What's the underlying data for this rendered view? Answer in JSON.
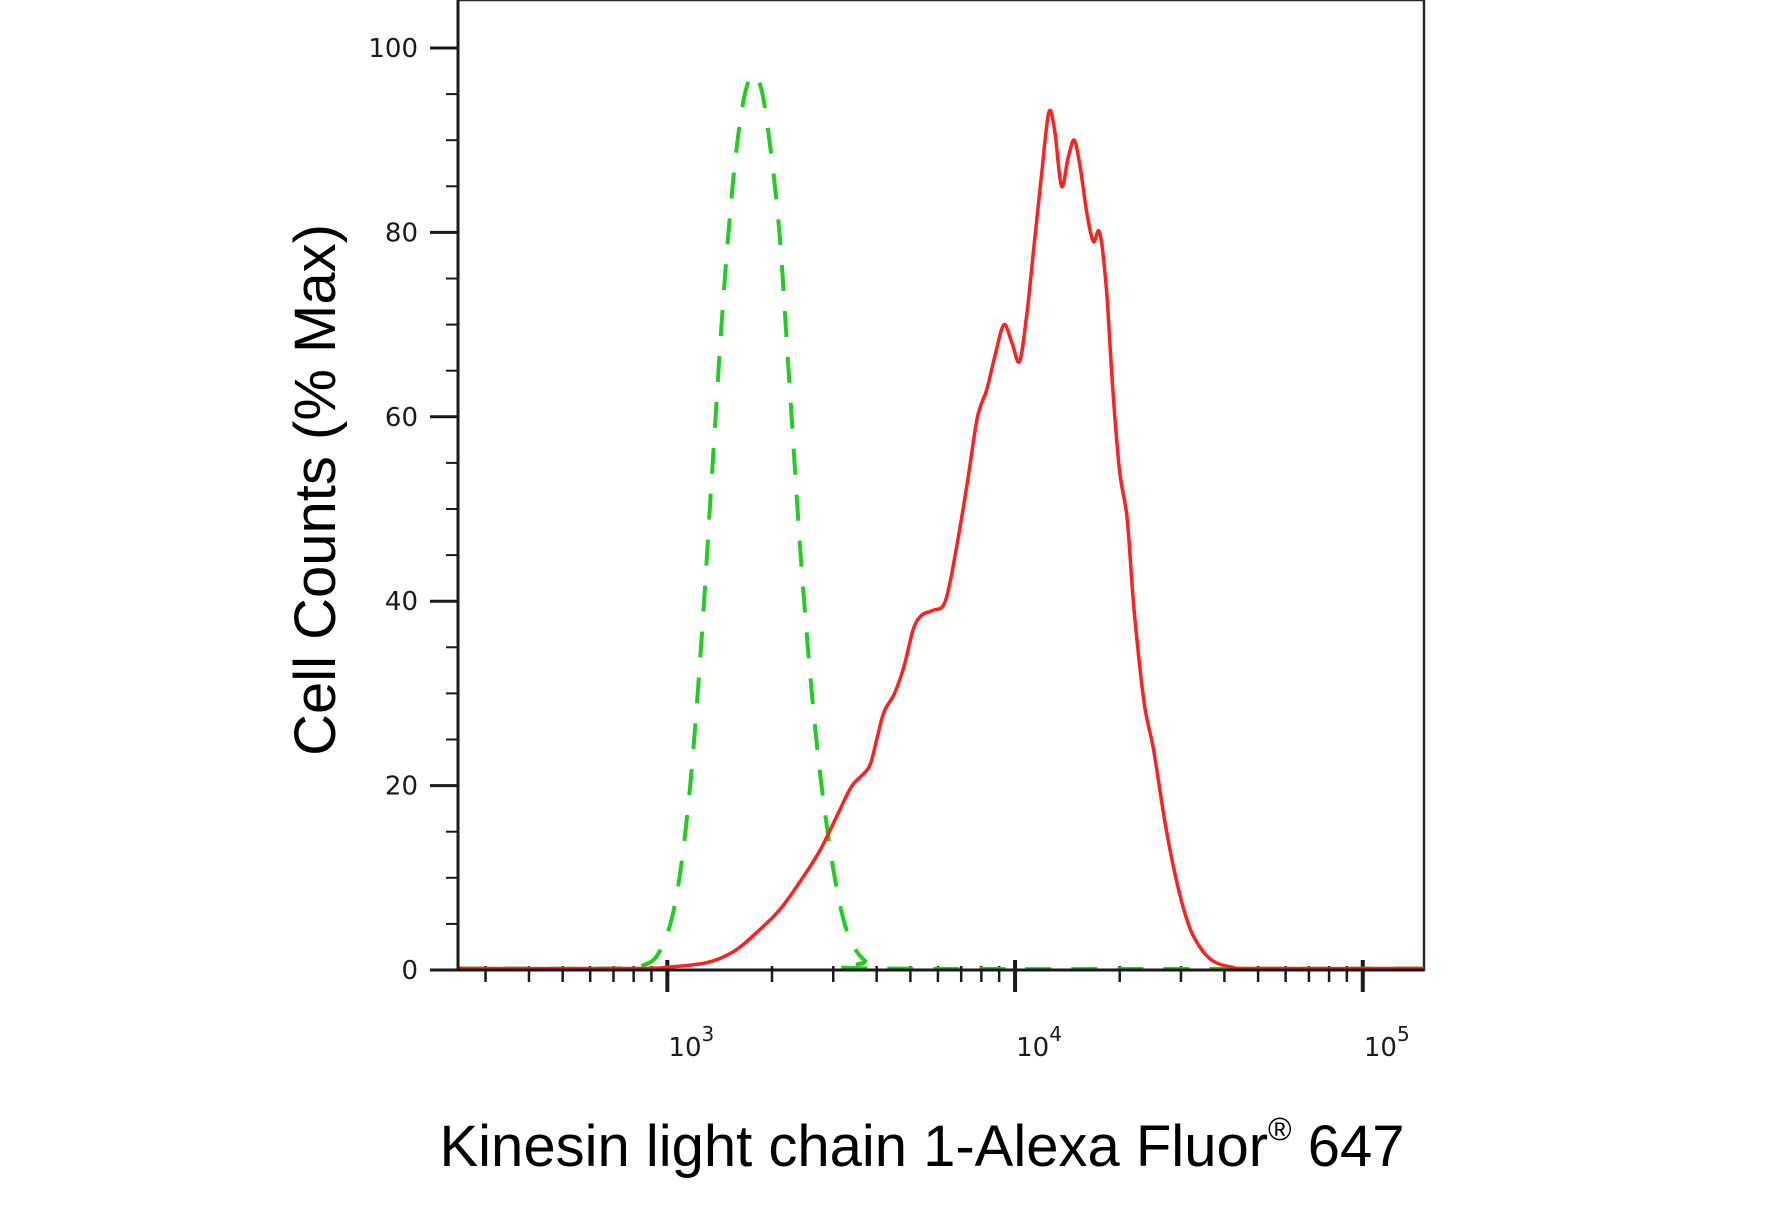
{
  "chart_data": {
    "type": "line",
    "title": "",
    "xlabel": "Kinesin light chain 1-Alexa Fluor",
    "xlabel_sup": "®",
    "xlabel_suffix": " 647",
    "ylabel": "Cell Counts (% Max)",
    "xscale": "log",
    "xlim": [
      250,
      150000
    ],
    "ylim": [
      0,
      105
    ],
    "grid": false,
    "legend": "none",
    "y_ticks": [
      {
        "value": 0,
        "label": "0"
      },
      {
        "value": 20,
        "label": "20"
      },
      {
        "value": 40,
        "label": "40"
      },
      {
        "value": 60,
        "label": "60"
      },
      {
        "value": 80,
        "label": "80"
      },
      {
        "value": 100,
        "label": "100"
      }
    ],
    "x_ticks": [
      {
        "value": 1000,
        "base": "10",
        "exp": "3"
      },
      {
        "value": 10000,
        "base": "10",
        "exp": "4"
      },
      {
        "value": 100000,
        "base": "10",
        "exp": "5"
      }
    ],
    "series": [
      {
        "color": "#22cc22",
        "dash": "dashed",
        "points": [
          [
            250,
            0
          ],
          [
            700,
            0
          ],
          [
            850,
            0.5
          ],
          [
            950,
            2
          ],
          [
            1050,
            7
          ],
          [
            1150,
            18
          ],
          [
            1250,
            35
          ],
          [
            1350,
            55
          ],
          [
            1450,
            73
          ],
          [
            1550,
            86
          ],
          [
            1650,
            94
          ],
          [
            1750,
            97
          ],
          [
            1850,
            96
          ],
          [
            1950,
            91
          ],
          [
            2100,
            80
          ],
          [
            2250,
            63
          ],
          [
            2450,
            42
          ],
          [
            2700,
            24
          ],
          [
            3000,
            11
          ],
          [
            3300,
            4
          ],
          [
            3700,
            1
          ],
          [
            4200,
            0
          ],
          [
            150000,
            0
          ]
        ]
      },
      {
        "color": "#ff2020",
        "dash": "solid",
        "points": [
          [
            250,
            0
          ],
          [
            800,
            0
          ],
          [
            1000,
            0.3
          ],
          [
            1300,
            0.8
          ],
          [
            1550,
            2
          ],
          [
            1800,
            4
          ],
          [
            2100,
            6.5
          ],
          [
            2400,
            9.5
          ],
          [
            2750,
            13
          ],
          [
            3100,
            17
          ],
          [
            3400,
            20
          ],
          [
            3800,
            22
          ],
          [
            4000,
            25
          ],
          [
            4200,
            28
          ],
          [
            4500,
            30
          ],
          [
            4800,
            33
          ],
          [
            5100,
            37
          ],
          [
            5400,
            38.5
          ],
          [
            5800,
            39
          ],
          [
            6300,
            40
          ],
          [
            6800,
            46
          ],
          [
            7300,
            53
          ],
          [
            7800,
            60
          ],
          [
            8300,
            63
          ],
          [
            8800,
            67
          ],
          [
            9300,
            70
          ],
          [
            9800,
            68
          ],
          [
            10300,
            66
          ],
          [
            10800,
            71
          ],
          [
            11300,
            78
          ],
          [
            11900,
            86
          ],
          [
            12500,
            93
          ],
          [
            13000,
            91
          ],
          [
            13600,
            85
          ],
          [
            14200,
            88
          ],
          [
            14800,
            90
          ],
          [
            15400,
            87
          ],
          [
            16100,
            82
          ],
          [
            16800,
            79
          ],
          [
            17500,
            80
          ],
          [
            18300,
            74
          ],
          [
            19100,
            63
          ],
          [
            20000,
            54
          ],
          [
            21000,
            49
          ],
          [
            22000,
            39
          ],
          [
            23500,
            29
          ],
          [
            25000,
            24
          ],
          [
            27000,
            16
          ],
          [
            29000,
            10
          ],
          [
            31500,
            5
          ],
          [
            34000,
            2.5
          ],
          [
            37000,
            1
          ],
          [
            42000,
            0.3
          ],
          [
            50000,
            0
          ],
          [
            150000,
            0
          ]
        ]
      }
    ]
  }
}
